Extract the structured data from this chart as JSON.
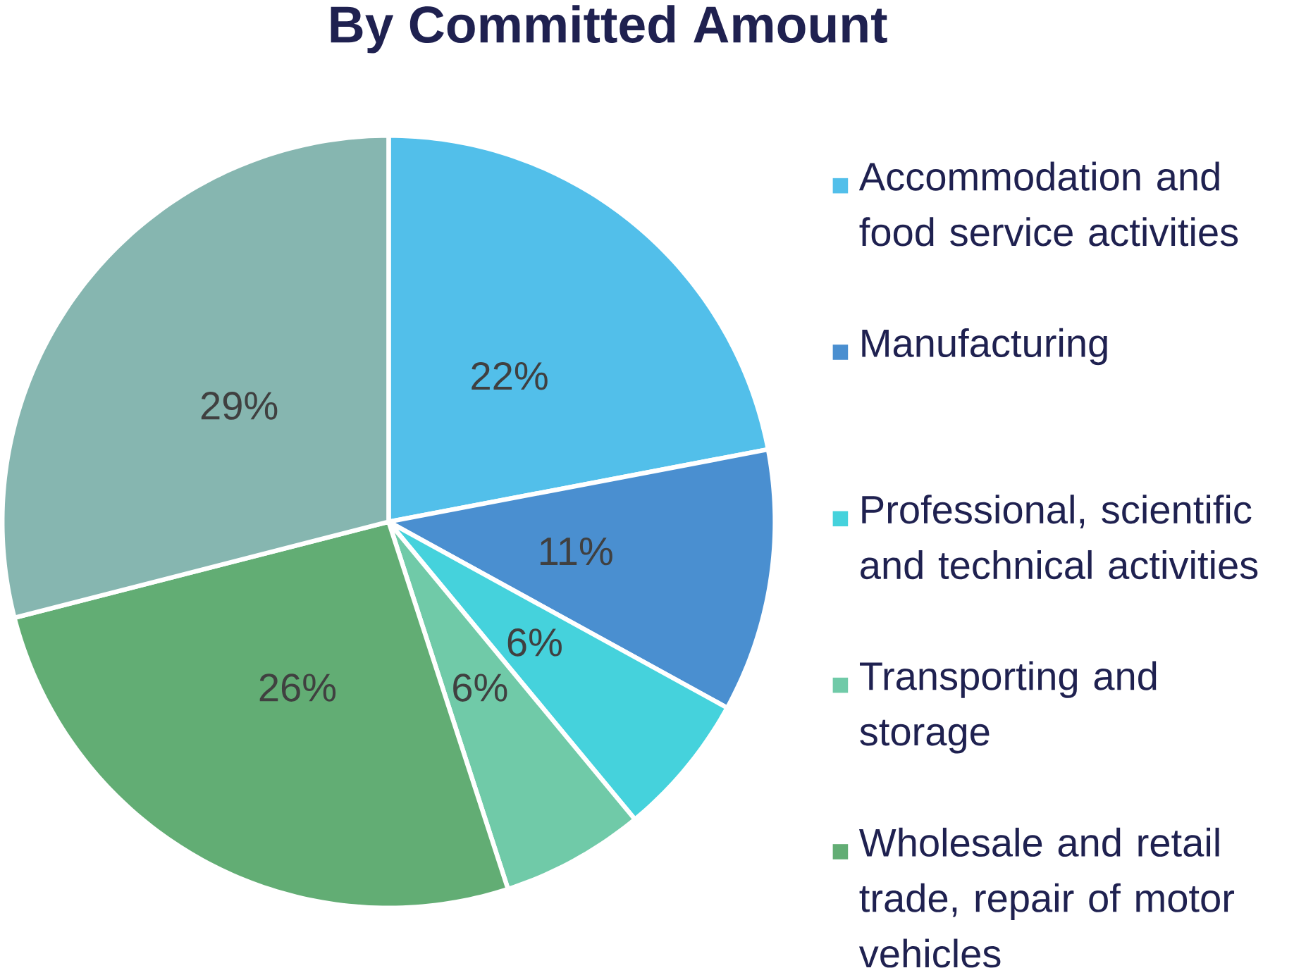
{
  "chart_data": {
    "type": "pie",
    "title": "By Committed Amount",
    "categories": [
      "Accommodation and food service activities",
      "Manufacturing",
      "Professional, scientific and technical activities",
      "Transporting and storage",
      "Wholesale and retail trade, repair of motor vehicles",
      null
    ],
    "values": [
      22,
      11,
      6,
      6,
      26,
      29
    ],
    "value_labels": [
      "22%",
      "11%",
      "6%",
      "6%",
      "26%",
      "29%"
    ],
    "colors": [
      "#52bfea",
      "#4a8fd0",
      "#45d2dc",
      "#70caa8",
      "#62ad74",
      "#86b6b0"
    ],
    "legend": "right"
  }
}
